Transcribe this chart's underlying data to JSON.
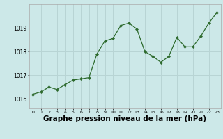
{
  "x": [
    0,
    1,
    2,
    3,
    4,
    5,
    6,
    7,
    8,
    9,
    10,
    11,
    12,
    13,
    14,
    15,
    16,
    17,
    18,
    19,
    20,
    21,
    22,
    23
  ],
  "y": [
    1016.2,
    1016.3,
    1016.5,
    1016.4,
    1016.6,
    1016.8,
    1016.85,
    1016.9,
    1017.9,
    1018.45,
    1018.55,
    1019.1,
    1019.2,
    1018.95,
    1018.0,
    1017.8,
    1017.55,
    1017.8,
    1018.6,
    1018.2,
    1018.2,
    1018.65,
    1019.2,
    1019.65
  ],
  "line_color": "#2d6a2d",
  "marker_color": "#2d6a2d",
  "bg_color": "#cce8e8",
  "grid_color": "#b8d4d4",
  "xlabel": "Graphe pression niveau de la mer (hPa)",
  "xlabel_fontsize": 7.5,
  "ylabel_ticks": [
    1016,
    1017,
    1018,
    1019
  ],
  "ylim": [
    1015.6,
    1020.0
  ],
  "xlim": [
    -0.5,
    23.5
  ]
}
